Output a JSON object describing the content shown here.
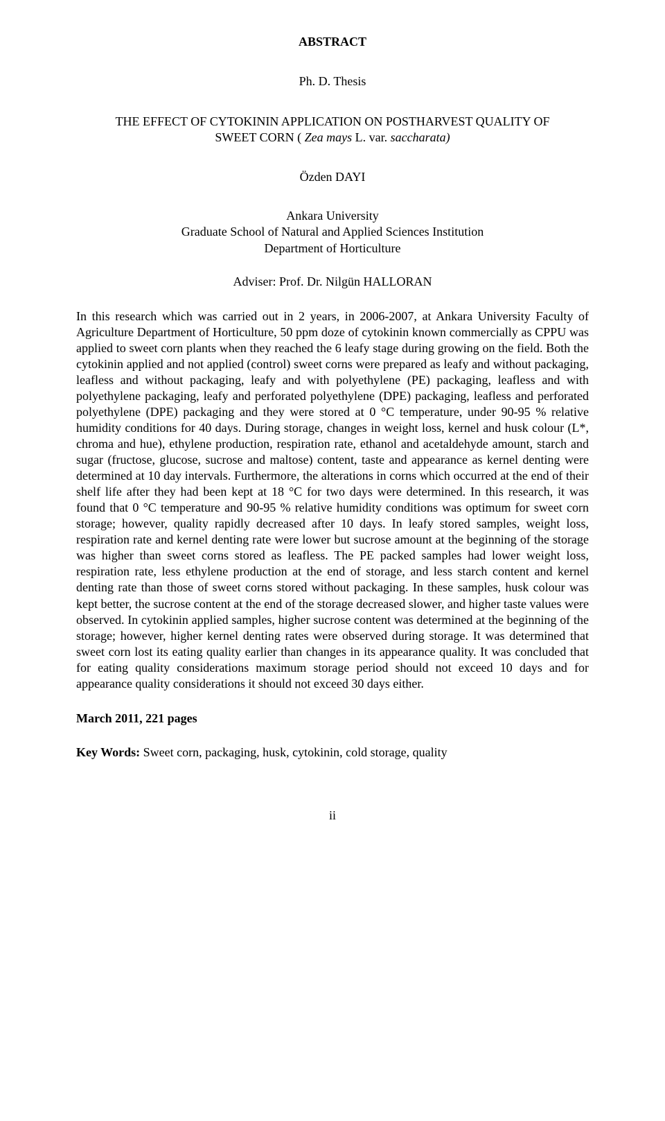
{
  "heading": "ABSTRACT",
  "subheading": "Ph. D. Thesis",
  "title_line1": "THE EFFECT OF CYTOKININ APPLICATION ON POSTHARVEST QUALITY OF",
  "title_line2_plain": "SWEET CORN ( ",
  "title_line2_italic": "Zea mays",
  "title_line2_tail": " L. var. ",
  "title_line2_italic2": "saccharata)",
  "author": "Özden DAYI",
  "affil_line1": "Ankara University",
  "affil_line2": "Graduate School of Natural and Applied Sciences Institution",
  "affil_line3": "Department of Horticulture",
  "adviser": "Adviser: Prof. Dr. Nilgün HALLORAN",
  "body": "In this research which was carried out in 2 years, in 2006-2007, at Ankara University Faculty of Agriculture Department of Horticulture, 50 ppm doze of cytokinin known commercially as CPPU was applied to sweet corn plants when they reached the 6 leafy stage during growing on the field. Both the cytokinin applied and not applied (control) sweet corns were prepared as leafy and without packaging, leafless and without packaging, leafy and with polyethylene (PE) packaging, leafless and with polyethylene packaging, leafy and perforated polyethylene (DPE) packaging, leafless and perforated polyethylene (DPE) packaging and they were stored at 0 °C temperature, under 90-95 % relative humidity conditions for 40 days. During storage, changes in weight loss, kernel and husk colour (L*, chroma and hue), ethylene production, respiration rate, ethanol and acetaldehyde amount, starch and sugar (fructose, glucose, sucrose and maltose) content, taste and appearance as kernel denting were determined at 10 day intervals. Furthermore, the alterations in corns which occurred at the end of their shelf life after they had been kept at 18 °C for two days were determined. In this research, it was found that 0 °C temperature and 90-95 % relative humidity conditions was optimum for sweet corn storage; however, quality rapidly decreased after 10 days. In leafy stored samples, weight loss, respiration rate and kernel denting rate were lower but sucrose amount at the beginning of the storage was higher than sweet corns stored as leafless. The PE packed samples had lower weight loss, respiration rate, less ethylene production at the end of storage, and less starch content and kernel denting rate than those of sweet corns stored without packaging. In these samples, husk colour was kept better, the sucrose content at the end of the storage decreased slower, and higher taste values were observed. In cytokinin applied samples, higher sucrose content was determined at the beginning of the storage; however, higher kernel denting rates were observed during storage. It was determined that sweet corn lost its eating quality earlier than changes in its appearance quality. It was concluded that for eating quality considerations maximum storage period should not exceed 10 days and for appearance quality considerations it should not exceed 30 days either.",
  "date_pages": "March 2011, 221 pages",
  "kw_label": "Key Words: ",
  "kw_text": "Sweet corn, packaging, husk, cytokinin, cold storage, quality",
  "page_number": "ii"
}
